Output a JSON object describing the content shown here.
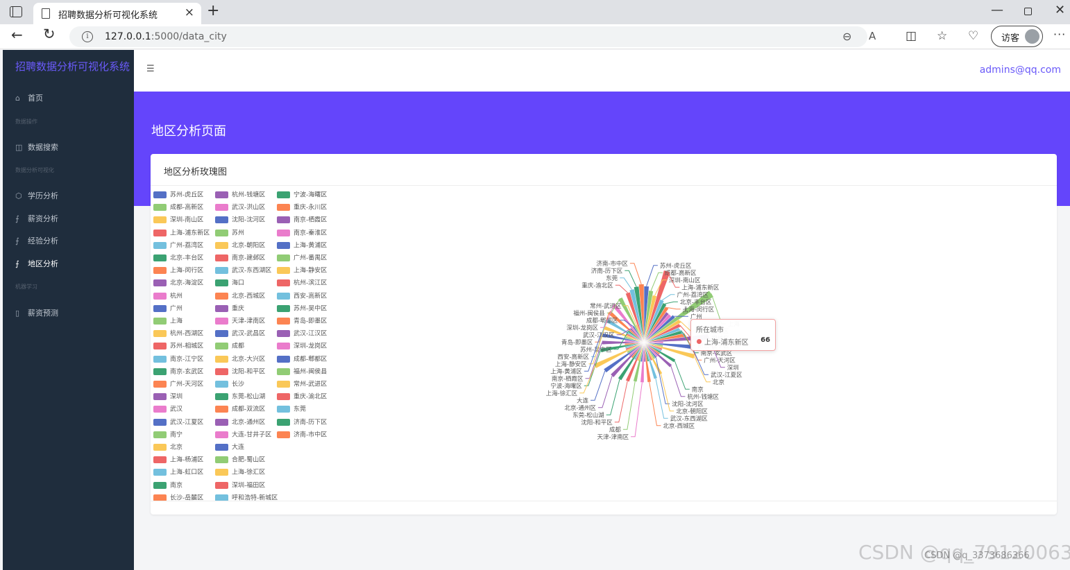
{
  "browser": {
    "tab_title": "招聘数据分析可视化系统",
    "url_host": "127.0.0.1",
    "url_path": ":5000/data_city",
    "profile_label": "访客"
  },
  "sidebar": {
    "brand": "招聘数据分析可视化系统",
    "items": [
      {
        "label": "首页",
        "icon": "home-icon"
      },
      {
        "group": "数据操作"
      },
      {
        "label": "数据搜索",
        "icon": "table-icon"
      },
      {
        "group": "数据分析可视化"
      },
      {
        "label": "学历分析",
        "icon": "box-icon"
      },
      {
        "label": "薪资分析",
        "icon": "chart-icon"
      },
      {
        "label": "经验分析",
        "icon": "chart-icon"
      },
      {
        "label": "地区分析",
        "icon": "chart-icon",
        "active": true
      },
      {
        "group": "机器学习"
      },
      {
        "label": "薪资预测",
        "icon": "doc-icon"
      }
    ]
  },
  "header": {
    "user_email": "admins@qq.com"
  },
  "page": {
    "title": "地区分析页面",
    "card_title": "地区分析玫瑰图"
  },
  "tooltip": {
    "title": "所在城市",
    "name": "上海-浦东新区",
    "value": "66"
  },
  "watermark": {
    "large": "CSDN @qq_79120063",
    "small": "CSDN @q_3373686366"
  },
  "palette": [
    "#5470c6",
    "#91cc75",
    "#fac858",
    "#ee6666",
    "#73c0de",
    "#3ba272",
    "#fc8452",
    "#9a60b4",
    "#ea7ccc"
  ],
  "chart_data": {
    "type": "pie",
    "rose_type": "radius",
    "title": "地区分析玫瑰图",
    "legend_position": "left",
    "categories": [
      "苏州-虎丘区",
      "成都-高新区",
      "深圳-南山区",
      "上海-浦东新区",
      "广州-荔湾区",
      "北京-丰台区",
      "上海-闵行区",
      "北京-海淀区",
      "杭州",
      "广州",
      "上海",
      "杭州-西湖区",
      "苏州-相城区",
      "南京-江宁区",
      "南京-玄武区",
      "广州-天河区",
      "深圳",
      "武汉",
      "武汉-江夏区",
      "南宁",
      "北京",
      "上海-杨浦区",
      "上海-虹口区",
      "南京",
      "长沙-岳麓区",
      "杭州-钱塘区",
      "武汉-洪山区",
      "沈阳-沈河区",
      "苏州",
      "北京-朝阳区",
      "南京-建邺区",
      "武汉-东西湖区",
      "海口",
      "北京-西城区",
      "重庆",
      "天津-津南区",
      "武汉-武昌区",
      "成都",
      "北京-大兴区",
      "沈阳-和平区",
      "长沙",
      "东莞-松山湖",
      "成都-双流区",
      "北京-通州区",
      "大连-甘井子区",
      "大连",
      "合肥-蜀山区",
      "上海-徐汇区",
      "深圳-福田区",
      "呼和浩特-新城区",
      "宁波-海曙区",
      "重庆-永川区",
      "南京-栖霞区",
      "南京-秦淮区",
      "上海-黄浦区",
      "广州-番禺区",
      "上海-静安区",
      "杭州-滨江区",
      "西安-高新区",
      "苏州-吴中区",
      "青岛-即墨区",
      "武汉-江汉区",
      "深圳-龙岗区",
      "成都-郫都区",
      "福州-闽侯县",
      "常州-武进区",
      "重庆-渝北区",
      "东莞",
      "济南-历下区",
      "济南-市中区"
    ],
    "values": [
      48,
      44,
      40,
      66,
      38,
      36,
      34,
      30,
      30,
      32,
      74,
      34,
      32,
      30,
      32,
      34,
      56,
      12,
      40,
      12,
      44,
      12,
      12,
      28,
      12,
      28,
      12,
      12,
      12,
      28,
      12,
      30,
      12,
      32,
      12,
      32,
      12,
      32,
      12,
      34,
      12,
      36,
      12,
      38,
      12,
      40,
      12,
      46,
      12,
      12,
      36,
      12,
      34,
      12,
      36,
      12,
      34,
      12,
      36,
      12,
      38,
      12,
      40,
      12,
      42,
      12,
      44,
      46,
      48,
      50
    ],
    "labelled": [
      "苏州-虎丘区",
      "成都-高新区",
      "深圳-南山区",
      "上海-浦东新区",
      "广州-荔湾区",
      "北京-丰台区",
      "上海-闵行区",
      "广州",
      "上海",
      "杭州-西湖区",
      "苏州-相城区",
      "南京-江宁区",
      "南京-玄武区",
      "广州-天河区",
      "深圳",
      "武汉-江夏区",
      "北京",
      "南京",
      "杭州-钱塘区",
      "沈阳-沈河区",
      "北京-朝阳区",
      "武汉-东西湖区",
      "北京-西城区",
      "天津-津南区",
      "成都",
      "沈阳-和平区",
      "东莞-松山湖",
      "北京-通州区",
      "大连",
      "上海-徐汇区",
      "宁波-海曙区",
      "南京-栖霞区",
      "上海-黄浦区",
      "上海-静安区",
      "西安-高新区",
      "苏州-吴中区",
      "青岛-即墨区",
      "武汉-江汉区",
      "深圳-龙岗区",
      "成都-郫都区",
      "福州-闽侯县",
      "常州-武进区",
      "重庆-渝北区",
      "东莞",
      "济南-历下区",
      "济南-市中区"
    ]
  }
}
